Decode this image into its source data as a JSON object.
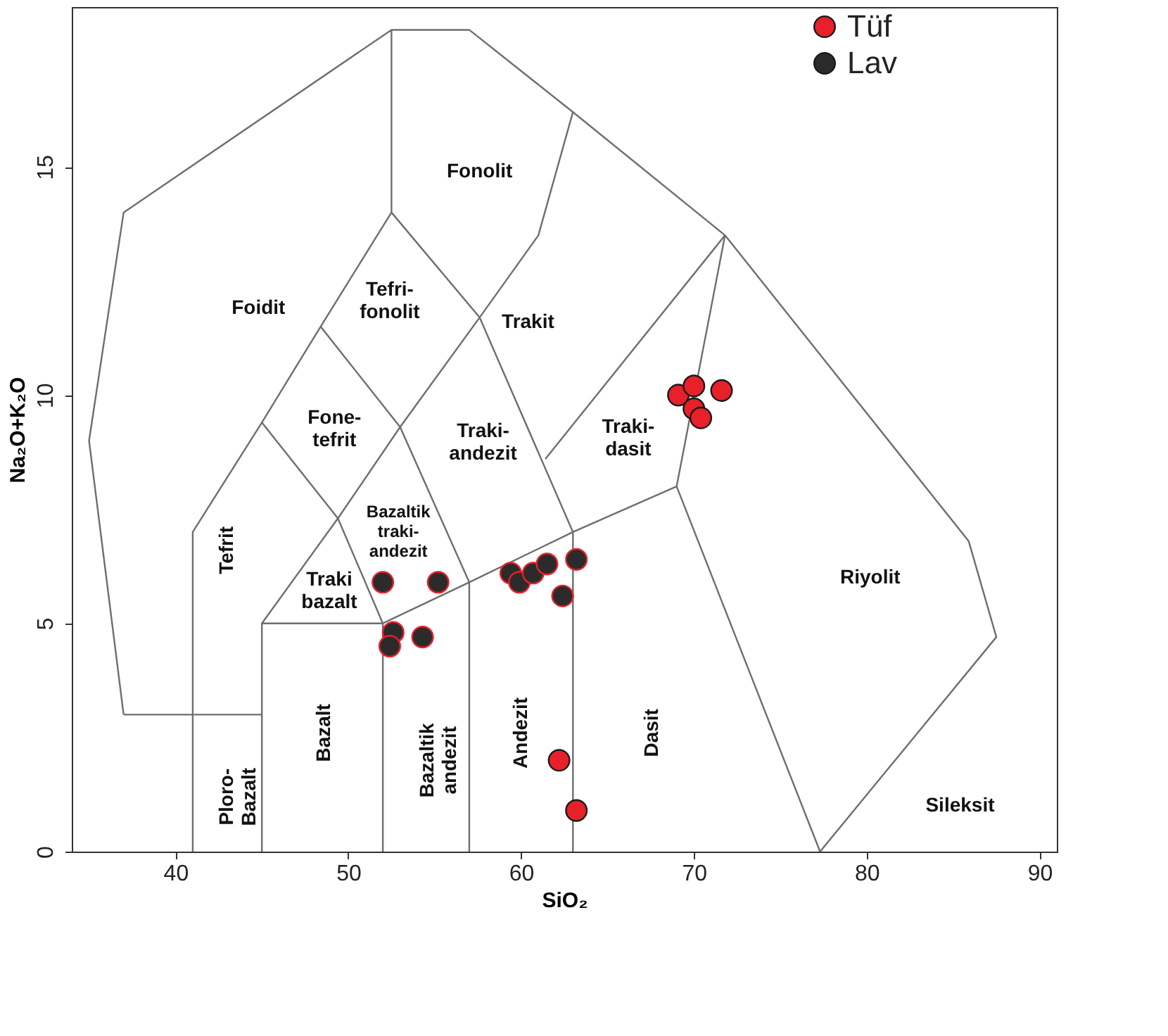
{
  "chart_data": {
    "type": "scatter",
    "xlabel": "SiO₂",
    "ylabel": "Na₂O+K₂O",
    "xlim": [
      34,
      91
    ],
    "ylim": [
      0,
      18.5
    ],
    "xticks": [
      40,
      50,
      60,
      70,
      80,
      90
    ],
    "yticks": [
      0,
      5,
      10,
      15
    ],
    "grid": false,
    "legend": "top right",
    "series": [
      {
        "type": "line",
        "marker": "none",
        "color": "#6e6e6e",
        "x": [
          37,
          35,
          37,
          52.5,
          57,
          63,
          71.8,
          85.9,
          87.5,
          77.3
        ],
        "values": [
          3,
          9,
          14,
          18,
          18,
          16.2,
          13.5,
          6.8,
          4.7,
          0
        ]
      },
      {
        "type": "line",
        "marker": "none",
        "color": "#6e6e6e",
        "x": [
          41,
          41,
          45,
          48.4,
          52.5,
          52.5
        ],
        "values": [
          0,
          7,
          9.4,
          11.5,
          14,
          18
        ]
      },
      {
        "type": "line",
        "marker": "none",
        "color": "#6e6e6e",
        "x": [
          37,
          45
        ],
        "values": [
          3,
          3
        ]
      },
      {
        "type": "line",
        "marker": "none",
        "color": "#6e6e6e",
        "x": [
          45,
          45,
          49.4,
          53,
          57.6,
          61,
          63
        ],
        "values": [
          0,
          5,
          7.3,
          9.3,
          11.7,
          13.5,
          16.2
        ]
      },
      {
        "type": "line",
        "marker": "none",
        "color": "#6e6e6e",
        "x": [
          52,
          52,
          57,
          63,
          69,
          71.8
        ],
        "values": [
          0,
          5,
          5.9,
          7,
          8,
          13.5
        ]
      },
      {
        "type": "line",
        "marker": "none",
        "color": "#6e6e6e",
        "x": [
          45,
          49.4,
          52,
          45
        ],
        "values": [
          9.4,
          7.3,
          5,
          5
        ]
      },
      {
        "type": "line",
        "marker": "none",
        "color": "#6e6e6e",
        "x": [
          57,
          57,
          53,
          48.4
        ],
        "values": [
          0,
          5.9,
          9.3,
          11.5
        ]
      },
      {
        "type": "line",
        "marker": "none",
        "color": "#6e6e6e",
        "x": [
          63,
          63,
          57.6,
          52.5
        ],
        "values": [
          0,
          7,
          11.7,
          14
        ]
      },
      {
        "type": "line",
        "marker": "none",
        "color": "#6e6e6e",
        "x": [
          69,
          77.3
        ],
        "values": [
          8,
          0
        ]
      },
      {
        "type": "line",
        "marker": "none",
        "color": "#6e6e6e",
        "x": [
          61.4,
          71.8
        ],
        "values": [
          8.6,
          13.5
        ]
      },
      {
        "name": "Tüf",
        "marker": "circle",
        "color": "#e8202a",
        "x": [
          69.1,
          70.0,
          70.0,
          70.4,
          71.6,
          62.2,
          63.2
        ],
        "values": [
          10.0,
          10.2,
          9.7,
          9.5,
          10.1,
          2.0,
          0.9
        ]
      },
      {
        "name": "Lav",
        "marker": "circle",
        "color": "#2b2b2b",
        "x": [
          52.0,
          55.2,
          52.6,
          52.4,
          54.3,
          59.4,
          59.9,
          60.7,
          61.5,
          62.4,
          63.2
        ],
        "values": [
          5.9,
          5.9,
          4.8,
          4.5,
          4.7,
          6.1,
          5.9,
          6.1,
          6.3,
          5.6,
          6.4
        ]
      }
    ],
    "annotations": [
      "Foidit",
      "Fonolit",
      "Tefri-\nfonolit",
      "Trakit",
      "Fone-\ntefrit",
      "Traki-\nandezit",
      "Traki-\ndasit",
      "Bazaltik\ntraki-\nandezit",
      "Tefrit",
      "Traki\nbazalt",
      "Riyolit",
      "Bazalt",
      "Ploro-\nBazalt",
      "Bazaltik\nandezit",
      "Andezit",
      "Dasit",
      "Sileksit"
    ]
  }
}
